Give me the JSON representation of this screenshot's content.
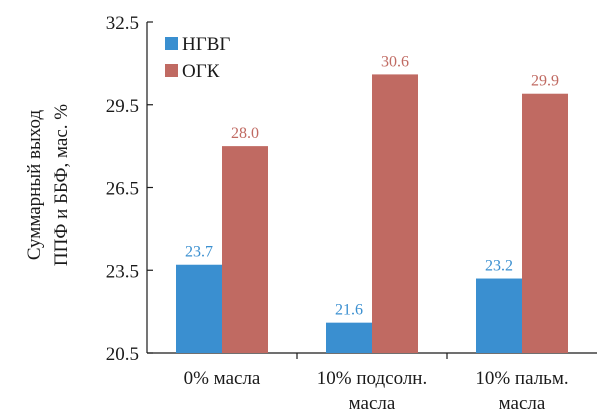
{
  "chart_data": {
    "type": "bar",
    "title": "",
    "ylabel_lines": [
      "Суммарный выход",
      "ППФ и ББФ, мас. %"
    ],
    "xlabel": "",
    "ylim": [
      20.5,
      32.5
    ],
    "yticks": [
      "20.5",
      "23.5",
      "26.5",
      "29.5",
      "32.5"
    ],
    "categories": [
      [
        "0% масла"
      ],
      [
        "10% подсолн.",
        "масла"
      ],
      [
        "10% пальм.",
        "масла"
      ]
    ],
    "series": [
      {
        "name": "НГВГ",
        "values": [
          23.7,
          21.6,
          23.2
        ],
        "labels": [
          "23.7",
          "21.6",
          "23.2"
        ],
        "color": "#3a8fd0",
        "label_color": "#3a8fd0"
      },
      {
        "name": "ОГК",
        "values": [
          28.0,
          30.6,
          29.9
        ],
        "labels": [
          "28.0",
          "30.6",
          "29.9"
        ],
        "color": "#c06a62",
        "label_color": "#c06a62"
      }
    ],
    "legend_position": "top-left",
    "grid": false
  }
}
